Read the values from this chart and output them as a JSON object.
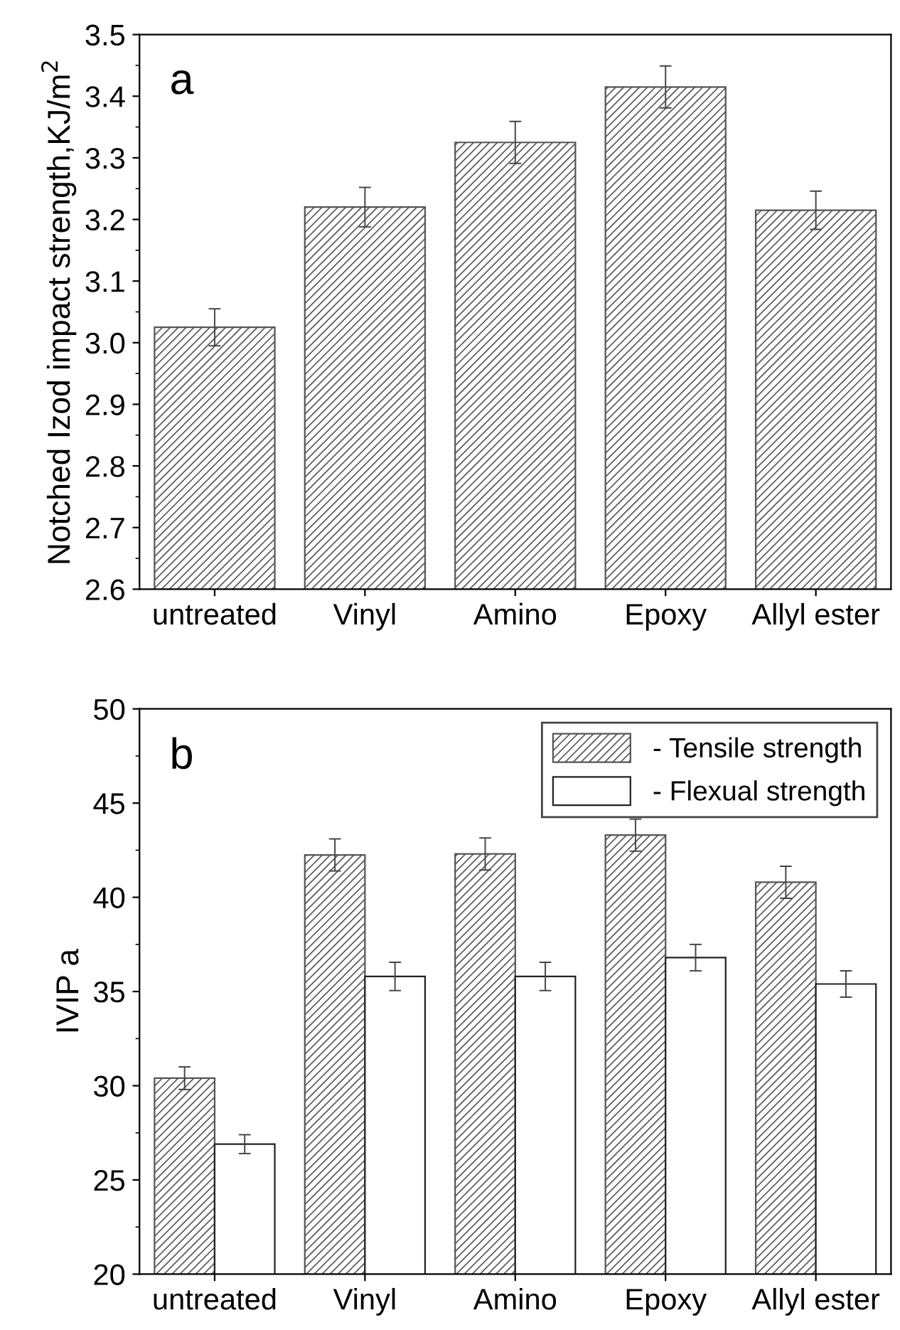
{
  "chart_data": [
    {
      "type": "bar",
      "ylabel": "Notched Izod impact strength,KJ/m$^{2}$",
      "annotations": [
        "a"
      ],
      "categories": [
        "untreated",
        "Vinyl",
        "Amino",
        "Epoxy",
        "Allyl ester"
      ],
      "series": [
        {
          "color": "#555555",
          "values": [
            3.025,
            3.22,
            3.325,
            3.415,
            3.215
          ],
          "errors": [
            0.03,
            0.032,
            0.034,
            0.034,
            0.031
          ]
        }
      ],
      "ylim": [
        2.6,
        3.5
      ],
      "yticks": [
        {
          "value": 2.6,
          "label": "2.6"
        },
        2.7,
        2.8,
        2.9,
        {
          "value": 3.0,
          "label": "3.0"
        },
        3.1,
        3.2,
        3.3,
        3.4,
        3.5
      ],
      "grid": false,
      "legend": false
    },
    {
      "type": "bar",
      "ylabel": "IVIP a",
      "annotations": [
        "b"
      ],
      "categories": [
        "untreated",
        "Vinyl",
        "Amino",
        "Epoxy",
        "Allyl ester"
      ],
      "series": [
        {
          "name": "- Tensile strength",
          "color": "#555555",
          "values": [
            30.4,
            42.25,
            42.3,
            43.3,
            40.8
          ],
          "errors": [
            0.6,
            0.85,
            0.85,
            0.85,
            0.85
          ]
        },
        {
          "name": "- Flexual strength",
          "color": "#ffffff",
          "values": [
            26.9,
            35.8,
            35.8,
            36.8,
            35.4
          ],
          "errors": [
            0.5,
            0.75,
            0.75,
            0.7,
            0.7
          ]
        }
      ],
      "ylim": [
        20,
        50
      ],
      "yticks": [
        20,
        25,
        30,
        35,
        40,
        45,
        50
      ],
      "grid": false,
      "legend": "top right"
    }
  ]
}
